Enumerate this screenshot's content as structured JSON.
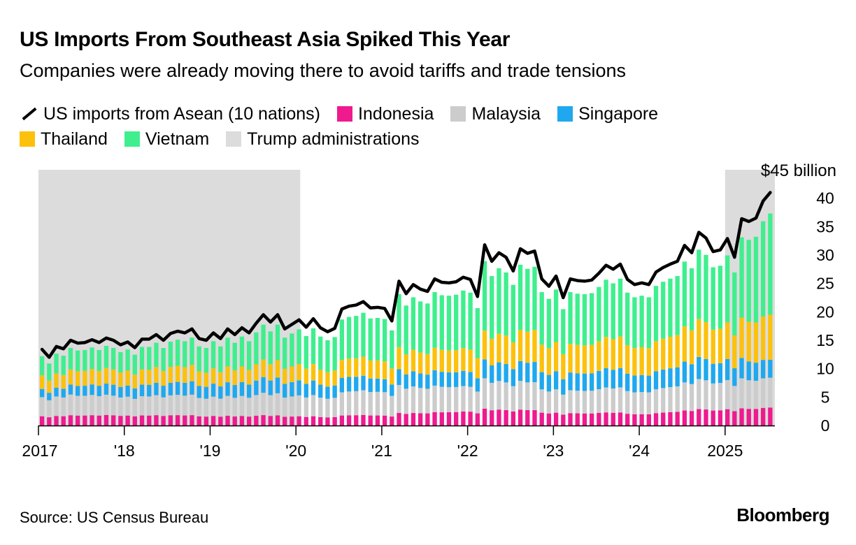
{
  "header": {
    "title": "US Imports From Southeast Asia Spiked This Year",
    "subtitle": "Companies were already moving there to avoid tariffs and trade tensions"
  },
  "legend": {
    "items": [
      {
        "label": "US imports from Asean (10 nations)",
        "kind": "line",
        "color": "#000000"
      },
      {
        "label": "Indonesia",
        "kind": "box",
        "color": "#ee1a8e"
      },
      {
        "label": "Malaysia",
        "kind": "box",
        "color": "#cccccc"
      },
      {
        "label": "Singapore",
        "kind": "box",
        "color": "#1fa8ef"
      },
      {
        "label": "Thailand",
        "kind": "box",
        "color": "#fcc10c"
      },
      {
        "label": "Vietnam",
        "kind": "box",
        "color": "#3fef8e"
      },
      {
        "label": "Trump administrations",
        "kind": "box",
        "color": "#dcdcdc"
      }
    ]
  },
  "footer": {
    "source": "Source: US Census Bureau",
    "brand": "Bloomberg"
  },
  "chart_data": {
    "type": "bar",
    "stacked": true,
    "x_start": "2017-01",
    "x_end": "2025-06",
    "x_ticks": [
      {
        "label": "2017",
        "x": 2017.0
      },
      {
        "label": "'18",
        "x": 2018.0
      },
      {
        "label": "'19",
        "x": 2019.0
      },
      {
        "label": "'20",
        "x": 2020.0
      },
      {
        "label": "'21",
        "x": 2021.0
      },
      {
        "label": "'22",
        "x": 2022.0
      },
      {
        "label": "'23",
        "x": 2023.0
      },
      {
        "label": "'24",
        "x": 2024.0
      },
      {
        "label": "2025",
        "x": 2025.0
      }
    ],
    "y_ticks": [
      0,
      5,
      10,
      15,
      20,
      25,
      30,
      35,
      40
    ],
    "ylim": [
      0,
      45
    ],
    "y_top_label": "$45 billion",
    "shaded_periods": [
      {
        "label": "Trump administrations",
        "start": 2017.0,
        "end": 2020.05
      },
      {
        "label": "Trump administrations",
        "start": 2025.0,
        "end": 2025.58
      }
    ],
    "series": [
      {
        "name": "Indonesia",
        "color": "#ee1a8e",
        "annual": [
          [
            2017,
            1.7
          ],
          [
            2018,
            1.8
          ],
          [
            2019,
            1.7
          ],
          [
            2020,
            1.6
          ],
          [
            2021,
            2.0
          ],
          [
            2022,
            2.8
          ],
          [
            2023,
            2.2
          ],
          [
            2024,
            2.2
          ],
          [
            2025,
            2.8
          ],
          [
            2025.5,
            3.2
          ]
        ]
      },
      {
        "name": "Malaysia",
        "color": "#cccccc",
        "annual": [
          [
            2017,
            3.5
          ],
          [
            2018,
            3.4
          ],
          [
            2019,
            3.4
          ],
          [
            2020,
            3.6
          ],
          [
            2021,
            4.7
          ],
          [
            2022,
            5.0
          ],
          [
            2023,
            4.0
          ],
          [
            2024,
            4.3
          ],
          [
            2025,
            5.0
          ],
          [
            2025.5,
            5.3
          ]
        ]
      },
      {
        "name": "Singapore",
        "color": "#1fa8ef",
        "annual": [
          [
            2017,
            1.5
          ],
          [
            2018,
            2.0
          ],
          [
            2019,
            2.3
          ],
          [
            2020,
            2.6
          ],
          [
            2021,
            2.6
          ],
          [
            2022,
            3.0
          ],
          [
            2023,
            3.1
          ],
          [
            2024,
            3.3
          ],
          [
            2025,
            3.6
          ],
          [
            2025.5,
            3.2
          ]
        ]
      },
      {
        "name": "Thailand",
        "color": "#fcc10c",
        "annual": [
          [
            2017,
            2.5
          ],
          [
            2018,
            2.7
          ],
          [
            2019,
            2.7
          ],
          [
            2020,
            2.8
          ],
          [
            2021,
            3.6
          ],
          [
            2022,
            4.5
          ],
          [
            2023,
            5.0
          ],
          [
            2024,
            5.4
          ],
          [
            2025,
            6.3
          ],
          [
            2025.5,
            8.0
          ]
        ]
      },
      {
        "name": "Vietnam",
        "color": "#3fef8e",
        "annual": [
          [
            2017,
            3.5
          ],
          [
            2018,
            3.8
          ],
          [
            2019,
            4.8
          ],
          [
            2020,
            6.0
          ],
          [
            2021,
            8.5
          ],
          [
            2022,
            11.5
          ],
          [
            2023,
            9.0
          ],
          [
            2024,
            10.0
          ],
          [
            2025,
            11.5
          ],
          [
            2025.5,
            18.0
          ]
        ]
      }
    ],
    "line": {
      "name": "US imports from Asean (10 nations)",
      "color": "#000000",
      "values": [
        13.4,
        12.0,
        13.9,
        13.5,
        15.0,
        14.5,
        14.6,
        15.1,
        14.6,
        15.4,
        15.0,
        14.2,
        14.7,
        13.7,
        15.2,
        15.2,
        16.0,
        15.0,
        16.2,
        16.6,
        16.3,
        17.0,
        15.3,
        15.0,
        16.3,
        15.3,
        17.0,
        16.0,
        17.2,
        16.3,
        18.0,
        19.5,
        18.2,
        19.5,
        17.0,
        17.8,
        18.6,
        17.3,
        18.8,
        17.2,
        16.5,
        17.1,
        20.5,
        21.0,
        21.2,
        21.8,
        20.7,
        20.8,
        20.6,
        18.4,
        25.4,
        23.2,
        24.8,
        24.0,
        23.6,
        25.8,
        25.2,
        25.1,
        25.3,
        26.1,
        25.7,
        22.7,
        31.8,
        28.9,
        30.4,
        29.6,
        27.2,
        31.1,
        30.3,
        30.7,
        25.8,
        24.5,
        26.3,
        22.5,
        25.8,
        25.5,
        25.4,
        25.6,
        26.8,
        28.2,
        27.5,
        28.4,
        25.7,
        24.8,
        25.1,
        24.8,
        27.0,
        27.8,
        28.4,
        28.9,
        31.7,
        30.4,
        34.0,
        33.0,
        30.6,
        30.9,
        32.9,
        29.6,
        36.4,
        35.9,
        36.5,
        39.5,
        41.0
      ]
    }
  }
}
